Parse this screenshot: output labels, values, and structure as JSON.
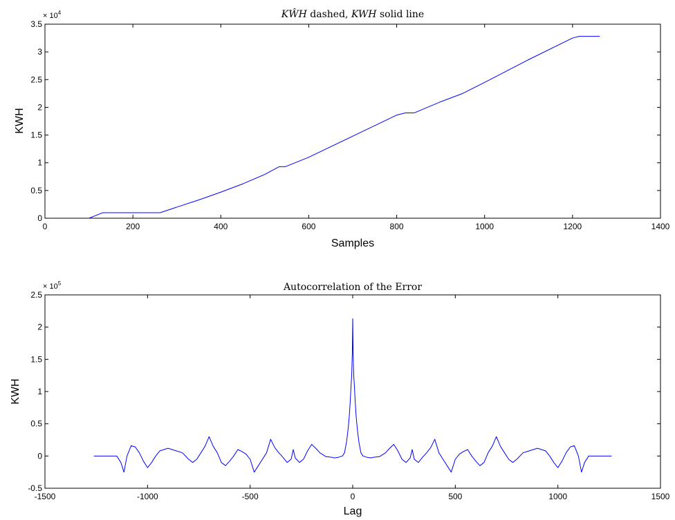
{
  "chart_data": [
    {
      "type": "line",
      "title_parts": [
        "KŴH",
        " dashed, ",
        "KWH",
        " solid line"
      ],
      "xlabel": "Samples",
      "ylabel": "KWH",
      "xlim": [
        0,
        1400
      ],
      "ylim": [
        0,
        35000
      ],
      "xticks": [
        "0",
        "200",
        "400",
        "600",
        "800",
        "1000",
        "1200",
        "1400"
      ],
      "yticks": [
        "0",
        "0.5",
        "1",
        "1.5",
        "2",
        "2.5",
        "3",
        "3.5"
      ],
      "y_multiplier": "× 10",
      "y_multiplier_exp": "4",
      "grid": false,
      "color": "#0000ff",
      "series": [
        {
          "x": [
            100,
            132,
            150,
            200,
            262,
            300,
            350,
            400,
            450,
            500,
            533,
            547,
            600,
            700,
            800,
            820,
            840,
            900,
            950,
            1000,
            1100,
            1200,
            1215,
            1262
          ],
          "y": [
            0,
            1000,
            1000,
            1000,
            1000,
            2000,
            3300,
            4700,
            6200,
            7900,
            9300,
            9300,
            11000,
            14800,
            18600,
            19000,
            19000,
            21000,
            22500,
            24500,
            28600,
            32500,
            32800,
            32800
          ]
        }
      ]
    },
    {
      "type": "line",
      "title": "Autocorrelation of the Error",
      "xlabel": "Lag",
      "ylabel": "KWH",
      "xlim": [
        -1500,
        1500
      ],
      "ylim": [
        -50000,
        250000
      ],
      "xticks": [
        "-1500",
        "-1000",
        "-500",
        "0",
        "500",
        "1000",
        "1500"
      ],
      "yticks": [
        "-0.5",
        "0",
        "0.5",
        "1",
        "1.5",
        "2",
        "2.5"
      ],
      "y_multiplier": "× 10",
      "y_multiplier_exp": "5",
      "grid": false,
      "color": "#0000ff",
      "series": [
        {
          "x": [
            0,
            2,
            5,
            8,
            12,
            16,
            20,
            25,
            30,
            40,
            50,
            70,
            90,
            100,
            130,
            160,
            180,
            200,
            220,
            240,
            260,
            280,
            290,
            300,
            320,
            340,
            360,
            380,
            400,
            420,
            440,
            460,
            480,
            500,
            520,
            540,
            560,
            580,
            600,
            620,
            640,
            660,
            680,
            700,
            720,
            740,
            760,
            780,
            800,
            830,
            860,
            880,
            900,
            920,
            940,
            960,
            980,
            1000,
            1020,
            1040,
            1060,
            1080,
            1100,
            1115,
            1130,
            1150,
            1200,
            1262
          ],
          "y": [
            213000,
            160000,
            125000,
            110000,
            85000,
            65000,
            50000,
            35000,
            22000,
            5000,
            0,
            -2000,
            -3000,
            -2000,
            -1000,
            5000,
            12000,
            18000,
            8000,
            -5000,
            -10000,
            -3000,
            10000,
            -5000,
            -10000,
            -2000,
            5000,
            13000,
            26000,
            5000,
            -5000,
            -15000,
            -25000,
            -5000,
            3000,
            7000,
            10000,
            0,
            -8000,
            -15000,
            -10000,
            5000,
            15000,
            30000,
            15000,
            5000,
            -5000,
            -10000,
            -5000,
            5000,
            8000,
            10000,
            12000,
            10000,
            8000,
            0,
            -10000,
            -18000,
            -8000,
            5000,
            14000,
            16000,
            0,
            -25000,
            -10000,
            0,
            0,
            0
          ]
        }
      ]
    }
  ]
}
